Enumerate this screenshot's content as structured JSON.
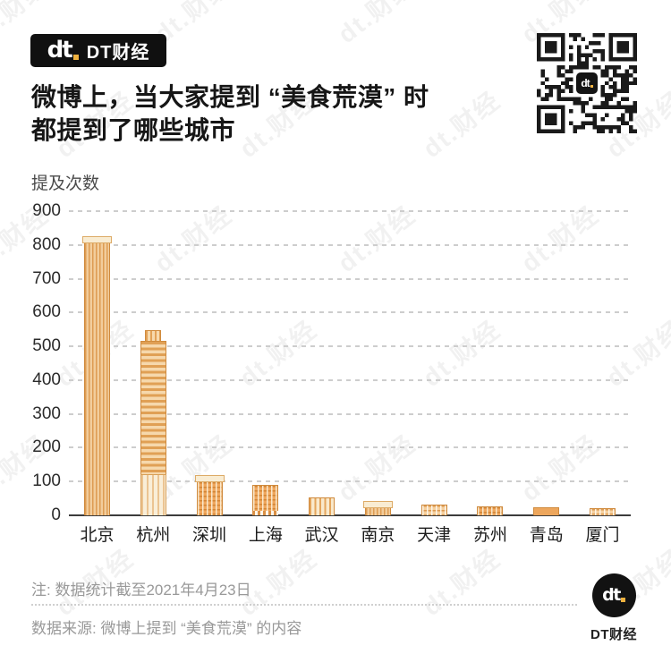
{
  "brand": {
    "name": "DT财经",
    "mark": "dt"
  },
  "header": {
    "title_line1": "微博上，当大家提到 “美食荒漠” 时",
    "title_line2": "都提到了哪些城市"
  },
  "chart_data": {
    "type": "bar",
    "title": "微博上，当大家提到“美食荒漠”时都提到了哪些城市",
    "ylabel": "提及次数",
    "xlabel": "",
    "categories": [
      "北京",
      "杭州",
      "深圳",
      "上海",
      "武汉",
      "南京",
      "天津",
      "苏州",
      "青岛",
      "厦门"
    ],
    "slugs": [
      "beijing",
      "hangzhou",
      "shenzhen",
      "shanghai",
      "wuhan",
      "nanjing",
      "tianjin",
      "suzhou",
      "qingdao",
      "xiamen"
    ],
    "values": [
      825,
      549,
      120,
      91,
      52,
      42,
      33,
      27,
      24,
      22
    ],
    "ylim": [
      0,
      900
    ],
    "yticks": [
      900,
      800,
      700,
      600,
      500,
      400,
      300,
      200,
      100,
      0
    ],
    "grid": "horizontal-dashed",
    "legend": "none",
    "bar_color": "#efa75e",
    "bar_styles": [
      {
        "body": "vstripes",
        "cap": true
      },
      {
        "body": "hbands",
        "crown": true,
        "base": true
      },
      {
        "body": "grid",
        "cap": true
      },
      {
        "body": "grid",
        "footing": true
      },
      {
        "body": "slits"
      },
      {
        "body": "vstripes",
        "cap": true
      },
      {
        "body": "gridlight"
      },
      {
        "body": "grid"
      },
      {
        "body": "solid"
      },
      {
        "body": "gridlight"
      }
    ]
  },
  "footer": {
    "note": "注: 数据统计截至2021年4月23日",
    "source": "数据来源: 微博上提到 “美食荒漠” 的内容"
  },
  "qr": {
    "center_label": "dt"
  },
  "watermark": {
    "text": "dt.财经"
  },
  "colors": {
    "accent_yellow": "#efb13f",
    "logo_black": "#111111",
    "building_orange": "#efa75e",
    "building_outline": "#cf8a3d",
    "grid_gray": "#cdcdcd",
    "footer_gray": "#999999"
  }
}
